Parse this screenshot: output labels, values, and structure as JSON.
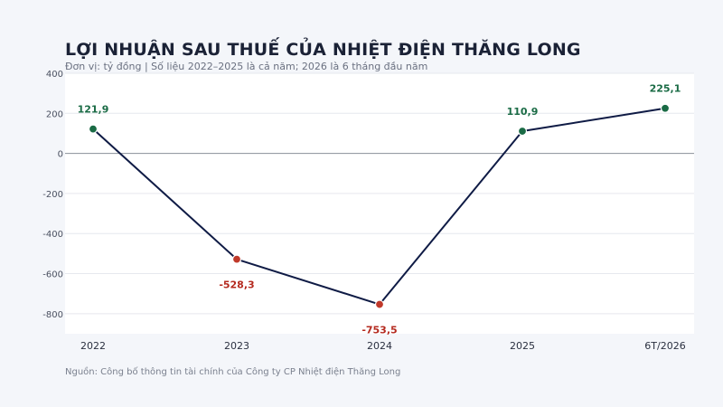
{
  "title": "LỢI NHUẬN SAU THUẾ CỦA NHIỆT ĐIỆN THĂNG LONG",
  "subtitle": "Đơn vị: tỷ đồng | Số liệu 2022–2025 là cả năm; 2026 là 6 tháng đầu năm",
  "source": "Nguồn: Công bố thông tin tài chính của Công ty CP Nhiệt điện Thăng Long",
  "chart_data": {
    "type": "line",
    "categories": [
      "2022",
      "2023",
      "2024",
      "2025",
      "6T/2026"
    ],
    "values": [
      121.9,
      -528.3,
      -753.5,
      110.9,
      225.1
    ],
    "data_labels": [
      "121,9",
      "-528,3",
      "-753,5",
      "110,9",
      "225,1"
    ],
    "yticks": [
      400,
      200,
      0,
      -200,
      -400,
      -600,
      -800
    ],
    "ytick_labels": [
      "400",
      "200",
      "0",
      "-200",
      "-400",
      "-600",
      "-800"
    ],
    "ylim": [
      -900,
      400
    ],
    "grid": true,
    "colors": {
      "line": "#0f1b45",
      "positive": "#1a6b45",
      "negative": "#c0392b",
      "positive_label": "#1a6b45",
      "negative_label": "#b52a1f",
      "grid": "#e6e8ee",
      "zero_line": "#8a8f9a"
    }
  }
}
